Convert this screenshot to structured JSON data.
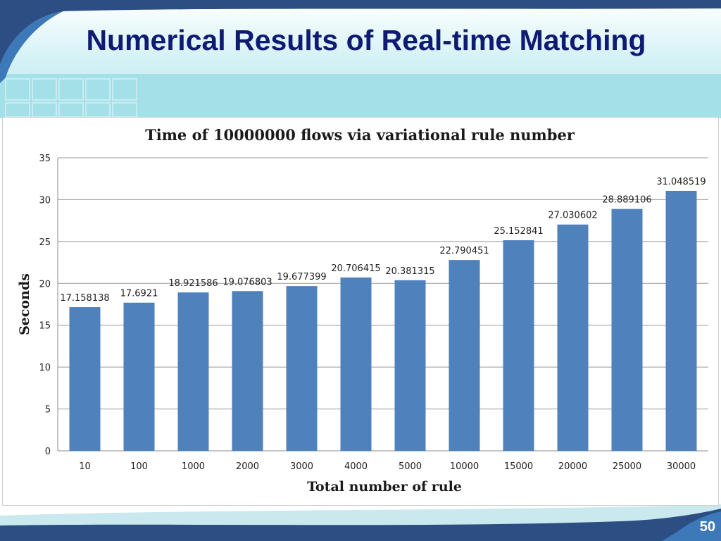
{
  "slide": {
    "title": "Numerical Results of Real-time Matching",
    "page_number": "50"
  },
  "colors": {
    "title": "#0f1a72",
    "bar": "#4f81bd",
    "header_light": "#c7eef3",
    "header_teal": "#a3e0e8",
    "frame_dark": "#2c4e82"
  },
  "chart_data": {
    "type": "bar",
    "title": "Time of 10000000 flows via variational  rule number",
    "xlabel": "Total number  of rule",
    "ylabel": "Seconds",
    "categories": [
      "10",
      "100",
      "1000",
      "2000",
      "3000",
      "4000",
      "5000",
      "10000",
      "15000",
      "20000",
      "25000",
      "30000"
    ],
    "values": [
      17.158138,
      17.6921,
      18.921586,
      19.076803,
      19.677399,
      20.706415,
      20.381315,
      22.790451,
      25.152841,
      27.030602,
      28.889106,
      31.048519
    ],
    "data_labels": [
      "17.158138",
      "17.6921",
      "18.921586",
      "19.076803",
      "19.677399",
      "20.706415",
      "20.381315",
      "22.790451",
      "25.152841",
      "27.030602",
      "28.889106",
      "31.048519"
    ],
    "yticks": [
      "0",
      "5",
      "10",
      "15",
      "20",
      "25",
      "30",
      "35"
    ],
    "ylim": [
      0,
      35
    ],
    "grid": true,
    "legend": "none"
  }
}
